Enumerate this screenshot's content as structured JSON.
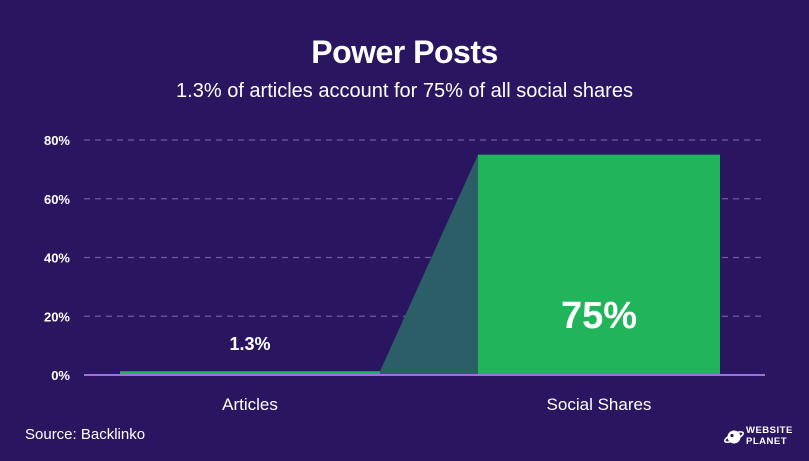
{
  "header": {
    "title": "Power Posts",
    "subtitle": "1.3% of articles account for 75% of all social shares"
  },
  "footer": {
    "source": "Source: Backlinko",
    "logo_line1": "WEBSITE",
    "logo_line2": "PLANET"
  },
  "colors": {
    "background": "#2a1660",
    "bar": "#22b45a",
    "connector": "#2b5e67",
    "grid": "#6d5aa3",
    "axis": "#9a72e0"
  },
  "chart_data": {
    "type": "bar",
    "title": "Power Posts",
    "subtitle": "1.3% of articles account for 75% of all social shares",
    "categories": [
      "Articles",
      "Social Shares"
    ],
    "values": [
      1.3,
      75
    ],
    "data_labels": [
      "1.3%",
      "75%"
    ],
    "ylim": [
      0,
      80
    ],
    "yticks": [
      0,
      20,
      40,
      60,
      80
    ],
    "ytick_labels": [
      "0%",
      "20%",
      "40%",
      "60%",
      "80%"
    ],
    "grid": true,
    "legend": "none"
  }
}
